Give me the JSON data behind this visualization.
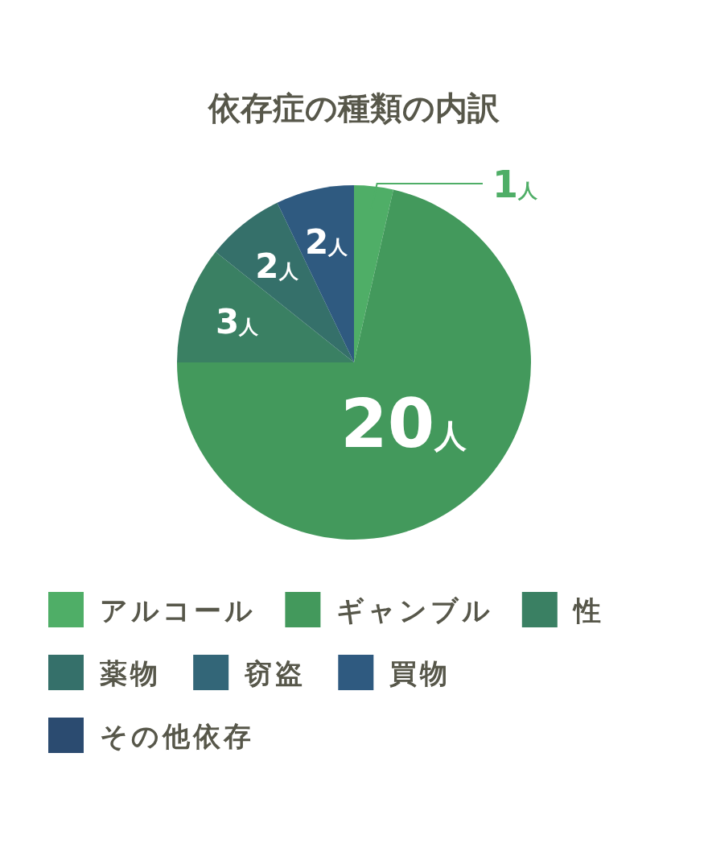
{
  "chart_data": {
    "type": "pie",
    "title": "依存症の種類の内訳",
    "categories": [
      "アルコール",
      "ギャンブル",
      "性",
      "薬物",
      "窃盗",
      "買物",
      "その他依存"
    ],
    "values": [
      1,
      20,
      3,
      2,
      0,
      2,
      0
    ],
    "colors": [
      "#4fae67",
      "#43995c",
      "#3a8063",
      "#35706a",
      "#336678",
      "#2f5a80",
      "#2b4b70"
    ],
    "value_labels": [
      "1人",
      "20人",
      "3人",
      "2人",
      null,
      "2人",
      null
    ],
    "legend": "bottom"
  }
}
